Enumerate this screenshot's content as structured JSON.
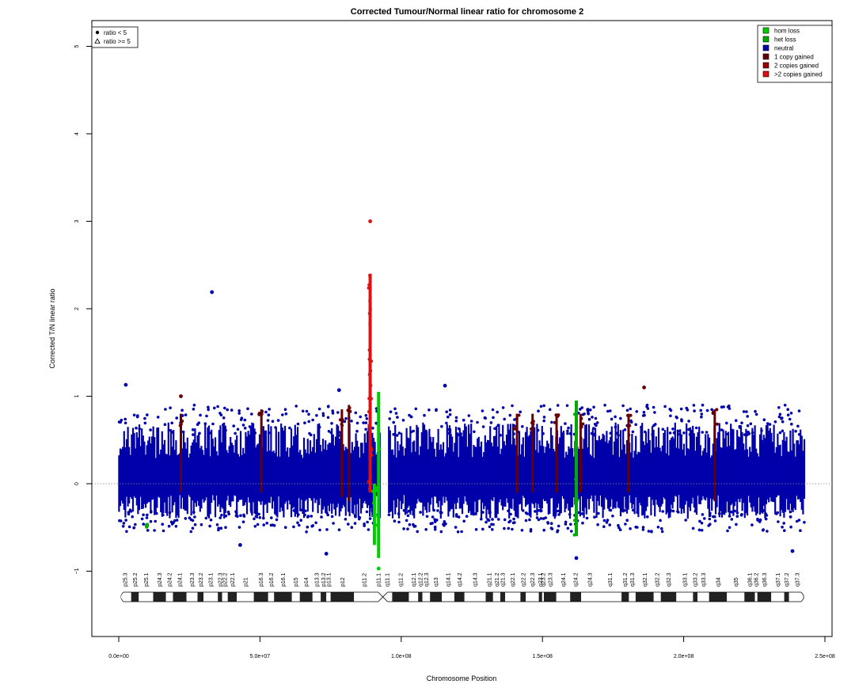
{
  "chart_data": {
    "type": "scatter",
    "title": "Corrected Tumour/Normal linear ratio for chromosome  2",
    "xlabel": "Chromosome Position",
    "ylabel": "Corrected T/N linear ratio",
    "xlim": [
      0,
      250000000
    ],
    "ylim": [
      -1.75,
      5.3
    ],
    "x_ticks": [
      0,
      50000000,
      100000000,
      150000000,
      200000000,
      250000000
    ],
    "x_tick_labels": [
      "0.0e+00",
      "5.0e+07",
      "1.0e+08",
      "1.5e+08",
      "2.0e+08",
      "2.5e+08"
    ],
    "y_ticks": [
      -1,
      0,
      1,
      2,
      3,
      4,
      5
    ],
    "y_tick_labels": [
      "−1",
      "0",
      "1",
      "2",
      "3",
      "4",
      "5"
    ],
    "reference_line_y": 0,
    "legend_markers": {
      "position": "top-left",
      "entries": [
        {
          "label": "ratio < 5",
          "shape": "circle"
        },
        {
          "label": "ratio >= 5",
          "shape": "triangle"
        }
      ]
    },
    "legend_states": {
      "position": "top-right",
      "entries": [
        {
          "label": "hom loss",
          "color": "#00cc00"
        },
        {
          "label": "het loss",
          "color": "#00aa00"
        },
        {
          "label": "neutral",
          "color": "#0000aa"
        },
        {
          "label": "1 copy gained",
          "color": "#660000"
        },
        {
          "label": "2 copies gained",
          "color": "#990000"
        },
        {
          "label": ">2 copies gained",
          "color": "#dd1111"
        }
      ]
    },
    "neutral_band": {
      "x_start": 100000,
      "x_end": 243000000,
      "y_low": -0.4,
      "y_high": 0.7,
      "color": "#0000aa",
      "gap_start": 92500000,
      "gap_end": 95500000
    },
    "gain_segments": [
      {
        "x": 22000000,
        "y_low": -0.1,
        "y_high": 0.8,
        "state": "1 copy gained"
      },
      {
        "x": 50500000,
        "y_low": -0.1,
        "y_high": 0.85,
        "state": "1 copy gained"
      },
      {
        "x": 79000000,
        "y_low": -0.15,
        "y_high": 0.85,
        "state": "1 copy gained"
      },
      {
        "x": 81500000,
        "y_low": -0.2,
        "y_high": 0.9,
        "state": "1 copy gained"
      },
      {
        "x": 141000000,
        "y_low": -0.1,
        "y_high": 0.8,
        "state": "1 copy gained"
      },
      {
        "x": 146500000,
        "y_low": -0.1,
        "y_high": 0.8,
        "state": "1 copy gained"
      },
      {
        "x": 155000000,
        "y_low": -0.1,
        "y_high": 0.8,
        "state": "1 copy gained"
      },
      {
        "x": 163500000,
        "y_low": -0.1,
        "y_high": 0.8,
        "state": "1 copy gained"
      },
      {
        "x": 180500000,
        "y_low": -0.1,
        "y_high": 0.8,
        "state": "1 copy gained"
      },
      {
        "x": 211000000,
        "y_low": -0.2,
        "y_high": 0.85,
        "state": "1 copy gained"
      }
    ],
    "high_gain_segment": {
      "x": 89000000,
      "y_low": -0.1,
      "y_high": 2.4,
      "state": ">2 copies gained"
    },
    "loss_segments": [
      {
        "x": 90500000,
        "y_low": -0.7,
        "y_high": 0.0,
        "state": "hom loss"
      },
      {
        "x": 92000000,
        "y_low": -0.85,
        "y_high": 1.05,
        "state": "hom loss"
      },
      {
        "x": 162000000,
        "y_low": -0.6,
        "y_high": 0.95,
        "state": "het loss"
      },
      {
        "x": 10000000,
        "y_low": -0.5,
        "y_high": -0.45,
        "state": "het loss"
      }
    ],
    "points": [
      {
        "x": 33000000,
        "y": 2.19,
        "state": "neutral"
      },
      {
        "x": 89000000,
        "y": 3.0,
        "state": ">2 copies gained"
      },
      {
        "x": 2500000,
        "y": 1.13,
        "state": "neutral"
      },
      {
        "x": 115500000,
        "y": 1.12,
        "state": "neutral"
      },
      {
        "x": 186000000,
        "y": 1.1,
        "state": "1 copy gained"
      },
      {
        "x": 78000000,
        "y": 1.07,
        "state": "neutral"
      },
      {
        "x": 22000000,
        "y": 1.0,
        "state": "1 copy gained"
      },
      {
        "x": 92000000,
        "y": -0.97,
        "state": "hom loss"
      },
      {
        "x": 73500000,
        "y": -0.8,
        "state": "neutral"
      },
      {
        "x": 238500000,
        "y": -0.77,
        "state": "neutral"
      },
      {
        "x": 162000000,
        "y": -0.85,
        "state": "neutral"
      },
      {
        "x": 43000000,
        "y": -0.7,
        "state": "neutral"
      }
    ],
    "ideogram": {
      "centromere_x": 93500000,
      "bands": [
        {
          "name": "p25.3",
          "start": 0,
          "end": 4400000,
          "stain": "white"
        },
        {
          "name": "p25.2",
          "start": 4400000,
          "end": 7100000,
          "stain": "black"
        },
        {
          "name": "p25.1",
          "start": 7100000,
          "end": 12200000,
          "stain": "white"
        },
        {
          "name": "p24.3",
          "start": 12200000,
          "end": 16700000,
          "stain": "black"
        },
        {
          "name": "p24.2",
          "start": 16700000,
          "end": 19200000,
          "stain": "white"
        },
        {
          "name": "p24.1",
          "start": 19200000,
          "end": 24000000,
          "stain": "black"
        },
        {
          "name": "p23.3",
          "start": 24000000,
          "end": 27900000,
          "stain": "white"
        },
        {
          "name": "p23.2",
          "start": 27900000,
          "end": 30000000,
          "stain": "black"
        },
        {
          "name": "p23.1",
          "start": 30000000,
          "end": 35100000,
          "stain": "white"
        },
        {
          "name": "p22.3",
          "start": 35100000,
          "end": 36600000,
          "stain": "black"
        },
        {
          "name": "p22.2",
          "start": 36600000,
          "end": 38600000,
          "stain": "white"
        },
        {
          "name": "p22.1",
          "start": 38600000,
          "end": 41800000,
          "stain": "black"
        },
        {
          "name": "p21",
          "start": 41800000,
          "end": 47800000,
          "stain": "white"
        },
        {
          "name": "p16.3",
          "start": 47800000,
          "end": 52900000,
          "stain": "black"
        },
        {
          "name": "p16.2",
          "start": 52900000,
          "end": 55000000,
          "stain": "white"
        },
        {
          "name": "p16.1",
          "start": 55000000,
          "end": 61300000,
          "stain": "black"
        },
        {
          "name": "p15",
          "start": 61300000,
          "end": 64100000,
          "stain": "white"
        },
        {
          "name": "p14",
          "start": 64100000,
          "end": 68600000,
          "stain": "black"
        },
        {
          "name": "p13.3",
          "start": 68600000,
          "end": 71500000,
          "stain": "white"
        },
        {
          "name": "p13.2",
          "start": 71500000,
          "end": 73500000,
          "stain": "black"
        },
        {
          "name": "p13.1",
          "start": 73500000,
          "end": 75000000,
          "stain": "white"
        },
        {
          "name": "p12",
          "start": 75000000,
          "end": 83300000,
          "stain": "black"
        },
        {
          "name": "p11.2",
          "start": 83300000,
          "end": 90500000,
          "stain": "white"
        },
        {
          "name": "p11.1",
          "start": 90500000,
          "end": 93300000,
          "stain": "white"
        },
        {
          "name": "q11.1",
          "start": 93300000,
          "end": 96800000,
          "stain": "white"
        },
        {
          "name": "q11.2",
          "start": 96800000,
          "end": 102700000,
          "stain": "black"
        },
        {
          "name": "q12.1",
          "start": 102700000,
          "end": 106000000,
          "stain": "white"
        },
        {
          "name": "q12.2",
          "start": 106000000,
          "end": 107500000,
          "stain": "black"
        },
        {
          "name": "q12.3",
          "start": 107500000,
          "end": 110200000,
          "stain": "white"
        },
        {
          "name": "q13",
          "start": 110200000,
          "end": 114400000,
          "stain": "black"
        },
        {
          "name": "q14.1",
          "start": 114400000,
          "end": 118800000,
          "stain": "white"
        },
        {
          "name": "q14.2",
          "start": 118800000,
          "end": 122400000,
          "stain": "black"
        },
        {
          "name": "q14.3",
          "start": 122400000,
          "end": 129900000,
          "stain": "white"
        },
        {
          "name": "q21.1",
          "start": 129900000,
          "end": 132500000,
          "stain": "black"
        },
        {
          "name": "q21.2",
          "start": 132500000,
          "end": 135100000,
          "stain": "white"
        },
        {
          "name": "q21.3",
          "start": 135100000,
          "end": 136800000,
          "stain": "black"
        },
        {
          "name": "q22.1",
          "start": 136800000,
          "end": 142200000,
          "stain": "white"
        },
        {
          "name": "q22.2",
          "start": 142200000,
          "end": 144100000,
          "stain": "black"
        },
        {
          "name": "q22.3",
          "start": 144100000,
          "end": 148700000,
          "stain": "white"
        },
        {
          "name": "q23.1",
          "start": 148700000,
          "end": 149900000,
          "stain": "black"
        },
        {
          "name": "q23.2",
          "start": 149900000,
          "end": 150500000,
          "stain": "white"
        },
        {
          "name": "q23.3",
          "start": 150500000,
          "end": 154900000,
          "stain": "black"
        },
        {
          "name": "q24.1",
          "start": 154900000,
          "end": 159800000,
          "stain": "white"
        },
        {
          "name": "q24.2",
          "start": 159800000,
          "end": 163700000,
          "stain": "black"
        },
        {
          "name": "q24.3",
          "start": 163700000,
          "end": 169700000,
          "stain": "white"
        },
        {
          "name": "q31.1",
          "start": 169700000,
          "end": 178000000,
          "stain": "white"
        },
        {
          "name": "q31.2",
          "start": 178000000,
          "end": 180600000,
          "stain": "black"
        },
        {
          "name": "q31.3",
          "start": 180600000,
          "end": 183000000,
          "stain": "white"
        },
        {
          "name": "q32.1",
          "start": 183000000,
          "end": 189400000,
          "stain": "black"
        },
        {
          "name": "q32.2",
          "start": 189400000,
          "end": 191900000,
          "stain": "white"
        },
        {
          "name": "q32.3",
          "start": 191900000,
          "end": 197400000,
          "stain": "black"
        },
        {
          "name": "q33.1",
          "start": 197400000,
          "end": 203300000,
          "stain": "white"
        },
        {
          "name": "q33.2",
          "start": 203300000,
          "end": 204900000,
          "stain": "black"
        },
        {
          "name": "q33.3",
          "start": 204900000,
          "end": 209000000,
          "stain": "white"
        },
        {
          "name": "q34",
          "start": 209000000,
          "end": 215300000,
          "stain": "black"
        },
        {
          "name": "q35",
          "start": 215300000,
          "end": 221500000,
          "stain": "white"
        },
        {
          "name": "q36.1",
          "start": 221500000,
          "end": 225200000,
          "stain": "black"
        },
        {
          "name": "q36.2",
          "start": 225200000,
          "end": 226100000,
          "stain": "white"
        },
        {
          "name": "q36.3",
          "start": 226100000,
          "end": 231000000,
          "stain": "black"
        },
        {
          "name": "q37.1",
          "start": 231000000,
          "end": 235600000,
          "stain": "white"
        },
        {
          "name": "q37.2",
          "start": 235600000,
          "end": 237300000,
          "stain": "black"
        },
        {
          "name": "q37.3",
          "start": 237300000,
          "end": 243199373,
          "stain": "white"
        }
      ]
    }
  }
}
